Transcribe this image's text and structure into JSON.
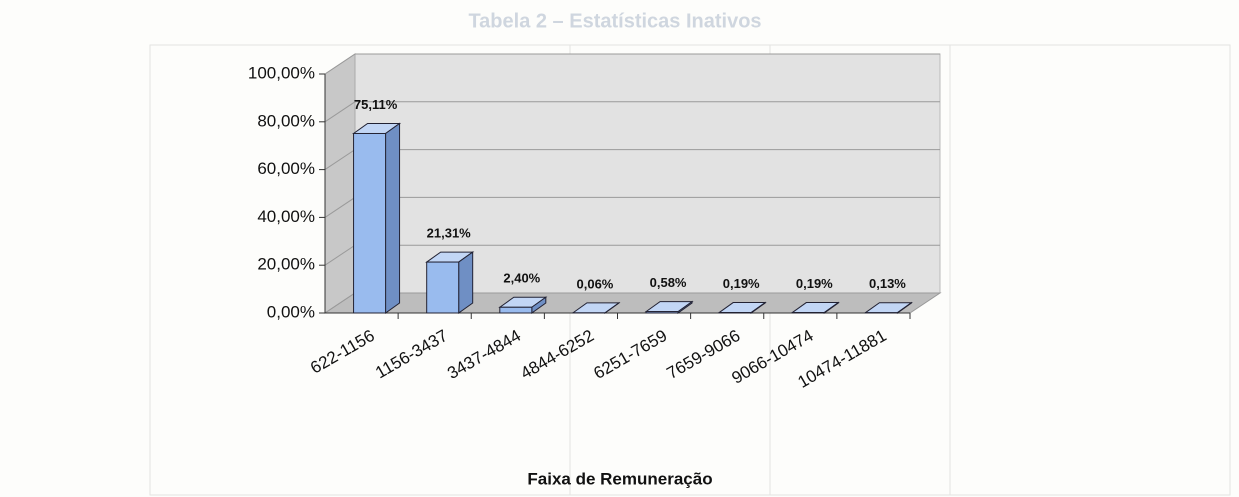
{
  "background": {
    "title": "Tabela 2 – Estatísticas Inativos"
  },
  "chart_data": {
    "type": "bar3d",
    "xlabel": "Faixa de Remuneração",
    "categories": [
      "622-1156",
      "1156-3437",
      "3437-4844",
      "4844-6252",
      "6251-7659",
      "7659-9066",
      "9066-10474",
      "10474-11881"
    ],
    "values": [
      75.11,
      21.31,
      2.4,
      0.06,
      0.58,
      0.19,
      0.19,
      0.13
    ],
    "value_labels": [
      "75,11%",
      "21,31%",
      "2,40%",
      "0,06%",
      "0,58%",
      "0,19%",
      "0,19%",
      "0,13%"
    ],
    "color": "#99bbee",
    "ylim": [
      0,
      100
    ],
    "yticks": [
      {
        "value": 0,
        "label": "0,00%"
      },
      {
        "value": 20,
        "label": "20,00%"
      },
      {
        "value": 40,
        "label": "40,00%"
      },
      {
        "value": 60,
        "label": "60,00%"
      },
      {
        "value": 80,
        "label": "80,00%"
      },
      {
        "value": 100,
        "label": "100,00%"
      }
    ],
    "grid": true
  }
}
